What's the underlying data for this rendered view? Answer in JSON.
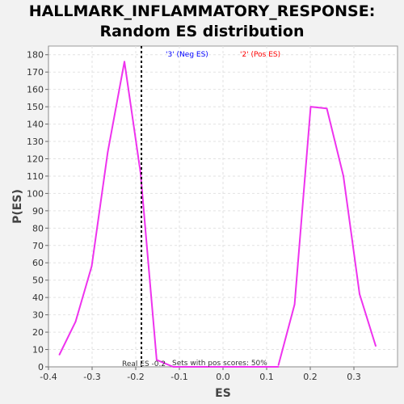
{
  "chart_data": {
    "type": "line",
    "title_line1": "HALLMARK_INFLAMMATORY_RESPONSE:",
    "title_line2": "Random ES distribution",
    "xlabel": "ES",
    "ylabel": "P(ES)",
    "xlim": [
      -0.4,
      0.4
    ],
    "ylim": [
      0,
      185
    ],
    "xticks": [
      -0.4,
      -0.3,
      -0.2,
      -0.1,
      0.0,
      0.1,
      0.2,
      0.3
    ],
    "xtick_labels": [
      "-0.4",
      "-0.3",
      "-0.2",
      "-0.1",
      "0.0",
      "0.1",
      "0.2",
      "0.3"
    ],
    "yticks": [
      0,
      10,
      20,
      30,
      40,
      50,
      60,
      70,
      80,
      90,
      100,
      110,
      120,
      130,
      140,
      150,
      160,
      170,
      180
    ],
    "grid": true,
    "series": [
      {
        "name": "'3' (Neg ES)",
        "legend_color": "#0000ff",
        "line_color": "#ee33ee",
        "x": [
          -0.375,
          -0.338,
          -0.301,
          -0.264,
          -0.226,
          -0.189,
          -0.152,
          -0.114,
          -0.077,
          -0.04,
          -0.003,
          0.034,
          0.072,
          0.109,
          0.127
        ],
        "y": [
          7,
          26,
          58,
          124,
          176,
          112,
          4,
          0,
          0,
          0,
          0,
          0,
          0,
          0,
          0
        ]
      },
      {
        "name": "'2' (Pos ES)",
        "legend_color": "#ff0000",
        "line_color": "#ee33ee",
        "x": [
          0.127,
          0.164,
          0.201,
          0.238,
          0.276,
          0.313,
          0.35
        ],
        "y": [
          1,
          36,
          150,
          149,
          110,
          42,
          12
        ]
      }
    ],
    "real_es": -0.187,
    "real_es_label": "Real ES -0.2",
    "annotation": "Sets with pos scores: 50%"
  },
  "colors": {
    "background": "#f2f2f2",
    "plot_background": "#ffffff",
    "grid": "#e2e2e2",
    "line": "#ee33ee",
    "real_es_line": "#000000"
  }
}
